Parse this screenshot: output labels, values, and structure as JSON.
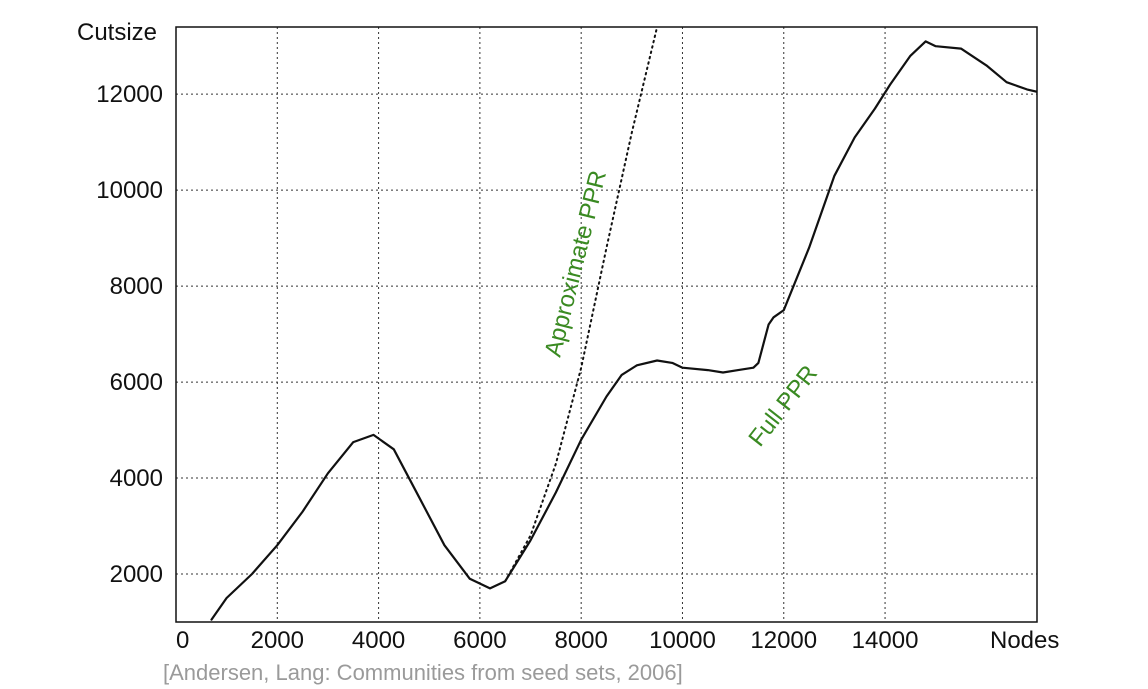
{
  "chart_data": {
    "type": "line",
    "xlabel": "Nodes",
    "ylabel": "Cutsize",
    "xlim": [
      0,
      17000
    ],
    "ylim": [
      1000,
      13400
    ],
    "xticks": [
      0,
      2000,
      4000,
      6000,
      8000,
      10000,
      12000,
      14000
    ],
    "yticks": [
      2000,
      4000,
      6000,
      8000,
      10000,
      12000
    ],
    "grid": true,
    "colors": {
      "series": "#111111",
      "annotation": "#3a8a22",
      "caption": "#9a9a9a"
    },
    "series": [
      {
        "name": "Full PPR",
        "style": "solid",
        "x": [
          700,
          1000,
          1500,
          2000,
          2500,
          3000,
          3500,
          3900,
          4300,
          4800,
          5300,
          5800,
          6200,
          6500,
          7000,
          7500,
          8000,
          8500,
          8800,
          9100,
          9500,
          9800,
          10000,
          10500,
          10800,
          11100,
          11400,
          11500,
          11700,
          11800,
          12000,
          12500,
          13000,
          13400,
          13800,
          14100,
          14500,
          14800,
          15000,
          15500,
          16000,
          16400,
          16800,
          17000
        ],
        "y": [
          1050,
          1500,
          2000,
          2600,
          3300,
          4100,
          4750,
          4900,
          4600,
          3600,
          2600,
          1900,
          1700,
          1850,
          2700,
          3700,
          4800,
          5700,
          6150,
          6350,
          6450,
          6400,
          6300,
          6250,
          6200,
          6250,
          6300,
          6400,
          7200,
          7350,
          7500,
          8800,
          10300,
          11100,
          11700,
          12200,
          12800,
          13100,
          13000,
          12950,
          12600,
          12250,
          12100,
          12050
        ]
      },
      {
        "name": "Approximate PPR",
        "style": "dotted",
        "x": [
          6500,
          7000,
          7500,
          8000,
          8500,
          9000,
          9500
        ],
        "y": [
          1850,
          2800,
          4300,
          6300,
          8800,
          11200,
          13400
        ]
      }
    ],
    "annotations": [
      "Approximate PPR",
      "Full PPR"
    ],
    "caption": "[Andersen, Lang: Communities from seed sets, 2006]"
  }
}
